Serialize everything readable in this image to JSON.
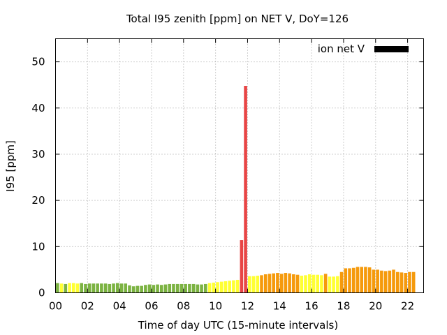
{
  "chart_data": {
    "type": "bar",
    "title": "Total I95 zenith [ppm] on NET V, DoY=126",
    "xlabel": "Time of day UTC (15-minute intervals)",
    "ylabel": "I95 [ppm]",
    "legend": {
      "label": "ion net V",
      "color": "#000000",
      "placement": "top-right"
    },
    "grid": true,
    "xlim": [
      0,
      23
    ],
    "ylim": [
      0,
      55
    ],
    "xticks": [
      "00",
      "02",
      "04",
      "06",
      "08",
      "10",
      "12",
      "14",
      "16",
      "18",
      "20",
      "22"
    ],
    "yticks": [
      "0",
      "10",
      "20",
      "30",
      "40",
      "50"
    ],
    "interval_hours": 0.25,
    "values": [
      2.1,
      2.0,
      1.9,
      2.1,
      2.1,
      2.0,
      2.1,
      1.9,
      2.0,
      2.0,
      2.0,
      2.0,
      2.0,
      1.9,
      2.0,
      2.1,
      2.0,
      2.0,
      1.6,
      1.4,
      1.5,
      1.5,
      1.7,
      1.8,
      1.7,
      1.8,
      1.7,
      1.8,
      1.9,
      1.9,
      1.9,
      1.9,
      1.9,
      1.9,
      1.9,
      1.8,
      1.8,
      1.9,
      2.1,
      2.2,
      2.3,
      2.4,
      2.5,
      2.6,
      2.7,
      2.8,
      11.4,
      44.8,
      3.6,
      3.6,
      3.7,
      3.8,
      4.0,
      4.1,
      4.2,
      4.3,
      4.1,
      4.3,
      4.2,
      4.0,
      3.9,
      3.7,
      3.8,
      4.0,
      3.9,
      3.9,
      3.8,
      4.1,
      3.5,
      3.5,
      3.6,
      4.5,
      5.3,
      5.3,
      5.4,
      5.6,
      5.6,
      5.6,
      5.5,
      5.0,
      5.0,
      4.8,
      4.7,
      4.8,
      5.0,
      4.5,
      4.4,
      4.3,
      4.5,
      4.5
    ],
    "colors": {
      "low": "#7cb342",
      "moderate": "#ffff33",
      "elevated": "#f59a0c",
      "high": "#e84545"
    },
    "color_levels": [
      "low",
      "moderate",
      "low",
      "moderate",
      "moderate",
      "moderate",
      "low",
      "low",
      "low",
      "low",
      "low",
      "low",
      "low",
      "low",
      "low",
      "low",
      "low",
      "low",
      "low",
      "low",
      "low",
      "low",
      "low",
      "low",
      "low",
      "low",
      "low",
      "low",
      "low",
      "low",
      "low",
      "low",
      "low",
      "low",
      "low",
      "low",
      "low",
      "low",
      "moderate",
      "moderate",
      "moderate",
      "moderate",
      "moderate",
      "moderate",
      "moderate",
      "moderate",
      "high",
      "high",
      "moderate",
      "moderate",
      "moderate",
      "elevated",
      "elevated",
      "elevated",
      "elevated",
      "elevated",
      "elevated",
      "elevated",
      "elevated",
      "elevated",
      "elevated",
      "moderate",
      "moderate",
      "moderate",
      "moderate",
      "moderate",
      "moderate",
      "elevated",
      "moderate",
      "moderate",
      "moderate",
      "elevated",
      "elevated",
      "elevated",
      "elevated",
      "elevated",
      "elevated",
      "elevated",
      "elevated",
      "elevated",
      "elevated",
      "elevated",
      "elevated",
      "elevated",
      "elevated",
      "elevated",
      "elevated",
      "elevated",
      "elevated",
      "elevated"
    ]
  }
}
